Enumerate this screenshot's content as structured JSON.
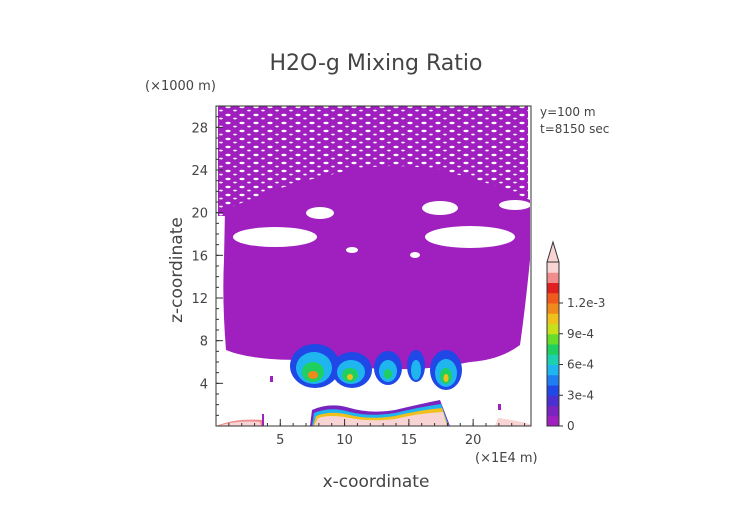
{
  "chart_data": {
    "type": "heatmap",
    "title": "H2O-g Mixing Ratio",
    "xlabel": "x-coordinate",
    "ylabel": "z-coordinate",
    "x_unit": "(×1E4 m)",
    "y_unit": "(×1000 m)",
    "annotations": [
      "y=100 m",
      "t=8150 sec"
    ],
    "xlim": [
      0,
      24.5
    ],
    "ylim": [
      0,
      30
    ],
    "x_ticks": [
      5,
      10,
      15,
      20
    ],
    "y_ticks": [
      4,
      8,
      12,
      16,
      20,
      24,
      28
    ],
    "colorbar": {
      "labels": [
        "0",
        "3e-4",
        "6e-4",
        "9e-4",
        "1.2e-3"
      ],
      "label_values": [
        0,
        0.0003,
        0.0006,
        0.0009,
        0.0012
      ],
      "colors": [
        "#a01fbf",
        "#7a24c0",
        "#4b2fd0",
        "#1f48e6",
        "#1f7ff0",
        "#1fb6f0",
        "#1fd0b0",
        "#1fd060",
        "#66dd2a",
        "#c8e01c",
        "#f0c01c",
        "#f08a1c",
        "#f05a1c",
        "#e02020",
        "#f08c8c",
        "#f8d4d4"
      ],
      "extend": "max"
    },
    "regions": [
      {
        "value": 1e-05,
        "description": "upper trace layer",
        "x_range": [
          0.2,
          24.5
        ],
        "z_range": [
          7.5,
          29.8
        ]
      },
      {
        "value": 0.0005,
        "description": "mid-level moist cores",
        "x_range": [
          6.5,
          18.5
        ],
        "z_range": [
          3.8,
          7.5
        ]
      },
      {
        "value": 0.0012,
        "description": "near-surface pink layer",
        "x_range": [
          7,
          18.5
        ],
        "z_range": [
          0,
          2
        ]
      }
    ]
  },
  "colors": {
    "text": "#444444",
    "base_purple": "#a01fbf",
    "axis": "#333333"
  }
}
